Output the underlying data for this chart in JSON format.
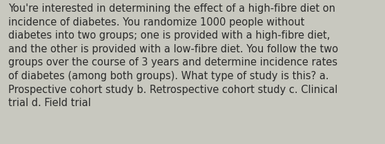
{
  "lines": [
    "You're interested in determining the effect of a high-fibre diet on",
    "incidence of diabetes. You randomize 1000 people without",
    "diabetes into two groups; one is provided with a high-fibre diet,",
    "and the other is provided with a low-fibre diet. You follow the two",
    "groups over the course of 3 years and determine incidence rates",
    "of diabetes (among both groups). What type of study is this? a.",
    "Prospective cohort study b. Retrospective cohort study c. Clinical",
    "trial d. Field trial"
  ],
  "background_color": "#c8c8bf",
  "text_color": "#2a2a2a",
  "font_size": 10.5,
  "fig_width": 5.58,
  "fig_height": 2.09,
  "dpi": 100
}
